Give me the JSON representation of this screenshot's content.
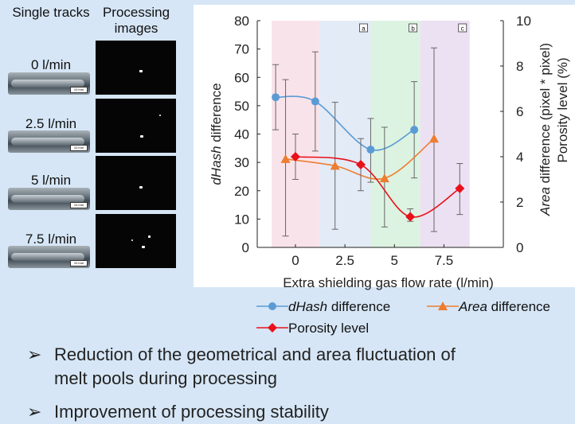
{
  "left_panel": {
    "col_header_tracks": "Single tracks",
    "col_header_images": "Processing images",
    "rows": [
      {
        "flow": "0 l/min"
      },
      {
        "flow": "2.5 l/min"
      },
      {
        "flow": "5 l/min"
      },
      {
        "flow": "7.5 l/min"
      }
    ]
  },
  "chart_data": {
    "type": "line",
    "xlabel": "Extra shielding gas flow rate (l/min)",
    "ylabel_left": "dHash difference",
    "ylabel_right_1": "Area difference (pixel * pixel)",
    "ylabel_right_2": "Porosity level (%)",
    "x_ticks": [
      "0",
      "2.5",
      "5",
      "7.5"
    ],
    "y_left_ticks": [
      "0",
      "10",
      "20",
      "30",
      "40",
      "50",
      "60",
      "70",
      "80"
    ],
    "y_right_ticks": [
      "0",
      "2",
      "4",
      "6",
      "8",
      "10"
    ],
    "ylim_left": [
      0,
      80
    ],
    "ylim_right": [
      0,
      10
    ],
    "regions": [
      {
        "x0": -1.2,
        "x1": 1.2,
        "color": "#f9e3ea",
        "label": ""
      },
      {
        "x0": 1.2,
        "x1": 3.8,
        "color": "#e3ebf7",
        "label": "a"
      },
      {
        "x0": 3.8,
        "x1": 6.3,
        "color": "#dcf3e1",
        "label": "b"
      },
      {
        "x0": 6.3,
        "x1": 8.8,
        "color": "#ece1f3",
        "label": "c"
      }
    ],
    "series": [
      {
        "name": "dHash difference",
        "color": "#5b9bd5",
        "marker": "circle",
        "axis": "left",
        "x": [
          -1,
          1,
          3.8,
          6
        ],
        "y": [
          53,
          51.5,
          34.5,
          41.5
        ],
        "err": [
          [
            41.5,
            64.5
          ],
          [
            34,
            69
          ],
          [
            23,
            45.5
          ],
          [
            24.5,
            58.5
          ]
        ]
      },
      {
        "name": "Area difference",
        "color": "#ed7d31",
        "marker": "triangle",
        "axis": "right",
        "x": [
          -0.5,
          2,
          4.5,
          7
        ],
        "y": [
          3.9,
          3.6,
          3.05,
          4.8
        ],
        "err": [
          [
            0.5,
            7.4
          ],
          [
            0.8,
            6.4
          ],
          [
            0.9,
            5.3
          ],
          [
            0.7,
            8.8
          ]
        ]
      },
      {
        "name": "Porosity level",
        "color": "#e8101a",
        "marker": "diamond",
        "axis": "right",
        "x": [
          0,
          3.3,
          5.8,
          8.3
        ],
        "y": [
          4.0,
          3.65,
          1.35,
          2.6
        ],
        "err": [
          [
            3.0,
            5.0
          ],
          [
            2.5,
            4.8
          ],
          [
            1.15,
            1.7
          ],
          [
            1.45,
            3.7
          ]
        ]
      }
    ]
  },
  "legend": {
    "dhash_italic": "dHash",
    "dhash_rest": " difference",
    "area_italic": "Area",
    "area_rest": " difference",
    "porosity": "Porosity level"
  },
  "bullets": [
    {
      "mark": "➢",
      "line1": "Reduction of the geometrical and area fluctuation of",
      "line2": "melt pools during processing"
    },
    {
      "mark": "➢",
      "line1": "Improvement of processing stability"
    }
  ]
}
